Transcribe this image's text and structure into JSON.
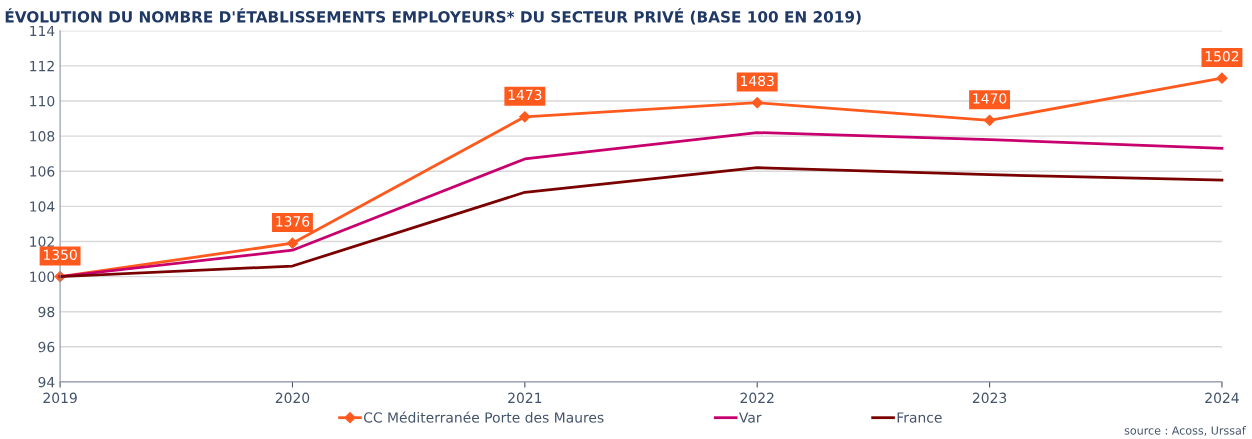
{
  "chart_data": {
    "type": "line",
    "title": "ÉVOLUTION DU NOMBRE D'ÉTABLISSEMENTS EMPLOYEURS* DU SECTEUR PRIVÉ (BASE 100 EN 2019)",
    "x": [
      2019,
      2020,
      2021,
      2022,
      2023,
      2024
    ],
    "series": [
      {
        "name": "CC Méditerranée Porte des Maures",
        "color": "#ff5a1e",
        "marker": "diamond",
        "values": [
          100,
          101.9,
          109.1,
          109.9,
          108.9,
          111.3
        ]
      },
      {
        "name": "Var",
        "color": "#c8006e",
        "marker": "none",
        "values": [
          100,
          101.5,
          106.7,
          108.2,
          107.8,
          107.3
        ]
      },
      {
        "name": "France",
        "color": "#7a0000",
        "marker": "none",
        "values": [
          100,
          100.6,
          104.8,
          106.2,
          105.8,
          105.5
        ]
      }
    ],
    "xlim": [
      2019,
      2024
    ],
    "xticks": [
      2019,
      2020,
      2021,
      2022,
      2023,
      2024
    ],
    "ylim": [
      94,
      114
    ],
    "yticks": [
      94,
      96,
      98,
      100,
      102,
      104,
      106,
      108,
      110,
      112,
      114
    ],
    "grid": "y",
    "legend": "bottom",
    "line_style": "solid",
    "annotations": [
      {
        "text": "1350",
        "x": 2019,
        "y": 100
      },
      {
        "text": "1376",
        "x": 2020,
        "y": 101.9
      },
      {
        "text": "1473",
        "x": 2021,
        "y": 109.1
      },
      {
        "text": "1483",
        "x": 2022,
        "y": 109.9
      },
      {
        "text": "1470",
        "x": 2023,
        "y": 108.9
      },
      {
        "text": "1502",
        "x": 2024,
        "y": 111.3
      },
      "source : Acoss, Urssaf"
    ]
  }
}
